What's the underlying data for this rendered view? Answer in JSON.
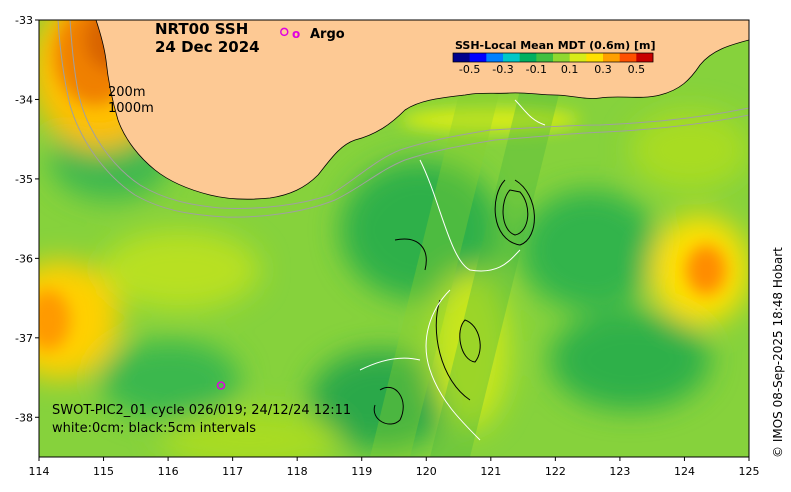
{
  "title": {
    "product": "NRT00 SSH",
    "date": "24 Dec 2024"
  },
  "legend_argo": {
    "marker": "o",
    "label": "Argo"
  },
  "colorbar": {
    "title": "SSH-Local Mean MDT (0.6m) [m]",
    "ticks": [
      "-0.5",
      "-0.3",
      "-0.1",
      "0.1",
      "0.3",
      "0.5"
    ],
    "colors": [
      "#00008c",
      "#0000ff",
      "#0080ff",
      "#00c8c8",
      "#00b060",
      "#40c040",
      "#90d830",
      "#d8ec18",
      "#ffe000",
      "#ffa000",
      "#ff5000",
      "#c80000"
    ]
  },
  "isobaths": {
    "shallow": "200m",
    "deep": "1000m"
  },
  "swot": {
    "line1": "SWOT-PIC2_01 cycle 026/019; 24/12/24 12:11",
    "line2": "white:0cm; black:5cm intervals"
  },
  "credit": "© IMOS 08-Sep-2025 18:48 Hobart",
  "map_data": {
    "lon_range": [
      114,
      125
    ],
    "lat_range": [
      -38.5,
      -33
    ],
    "xticks": [
      "114",
      "115",
      "116",
      "117",
      "118",
      "119",
      "120",
      "121",
      "122",
      "123",
      "124",
      "125"
    ],
    "yticks": [
      "-33",
      "-34",
      "-35",
      "-36",
      "-37",
      "-38"
    ],
    "argo_floats": [
      [
        116.82,
        -37.6
      ],
      [
        117.8,
        -33.15
      ]
    ]
  }
}
